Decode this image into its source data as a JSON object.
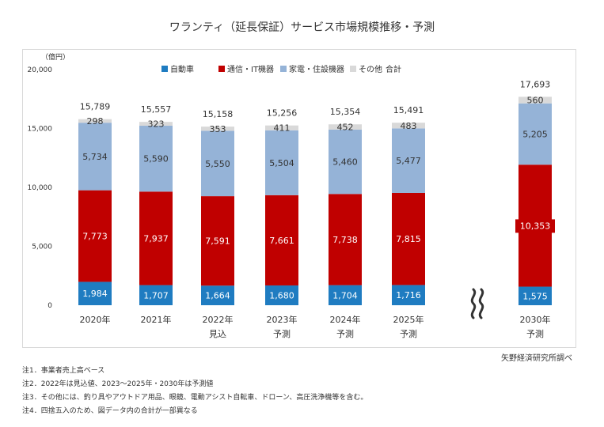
{
  "title": "ワランティ（延長保証）サービス市場規模推移・予測",
  "source": "矢野経済研究所調べ",
  "notes": [
    "注1．事業者売上高ベース",
    "注2．2022年は見込値、2023～2025年・2030年は予測値",
    "注3．その他には、釣り具やアウトドア用品、眼鏡、電動アシスト自転車、ドローン、高圧洗浄機等を含む。",
    "注4．四捨五入のため、図データ内の合計が一部異なる"
  ],
  "chart_data": {
    "type": "bar",
    "stacked": true,
    "unit_label": "（億円）",
    "ylim": [
      0,
      20000
    ],
    "yticks": [
      "0",
      "5,000",
      "10,000",
      "15,000",
      "20,000"
    ],
    "axis_break_symbol": "≈",
    "categories": [
      "2020年",
      "2021年",
      "2022年",
      "2023年",
      "2024年",
      "2025年",
      "2030年"
    ],
    "sublabels": [
      "",
      "",
      "見込",
      "予測",
      "予測",
      "予測",
      "予測"
    ],
    "series": [
      {
        "name": "自動車",
        "color": "#1f7cc1",
        "values": [
          1984,
          1707,
          1664,
          1680,
          1704,
          1716,
          1575
        ],
        "labels": [
          "1,984",
          "1,707",
          "1,664",
          "1,680",
          "1,704",
          "1,716",
          "1,575"
        ]
      },
      {
        "name": "通信・IT機器",
        "color": "#c00000",
        "values": [
          7773,
          7937,
          7591,
          7661,
          7738,
          7815,
          10353
        ],
        "labels": [
          "7,773",
          "7,937",
          "7,591",
          "7,661",
          "7,738",
          "7,815",
          "10,353"
        ]
      },
      {
        "name": "家電・住設機器",
        "color": "#95b3d7",
        "values": [
          5734,
          5590,
          5550,
          5504,
          5460,
          5477,
          5205
        ],
        "labels": [
          "5,734",
          "5,590",
          "5,550",
          "5,504",
          "5,460",
          "5,477",
          "5,205"
        ]
      },
      {
        "name": "その他",
        "color": "#d9d9d9",
        "values": [
          298,
          323,
          353,
          411,
          452,
          483,
          560
        ],
        "labels": [
          "298",
          "323",
          "353",
          "411",
          "452",
          "483",
          "560"
        ]
      }
    ],
    "totals": {
      "name": "合計",
      "values": [
        15789,
        15557,
        15158,
        15256,
        15354,
        15491,
        17693
      ],
      "labels": [
        "15,789",
        "15,557",
        "15,158",
        "15,256",
        "15,354",
        "15,491",
        "17,693"
      ]
    },
    "legend_position": "top-center",
    "grid": false
  }
}
